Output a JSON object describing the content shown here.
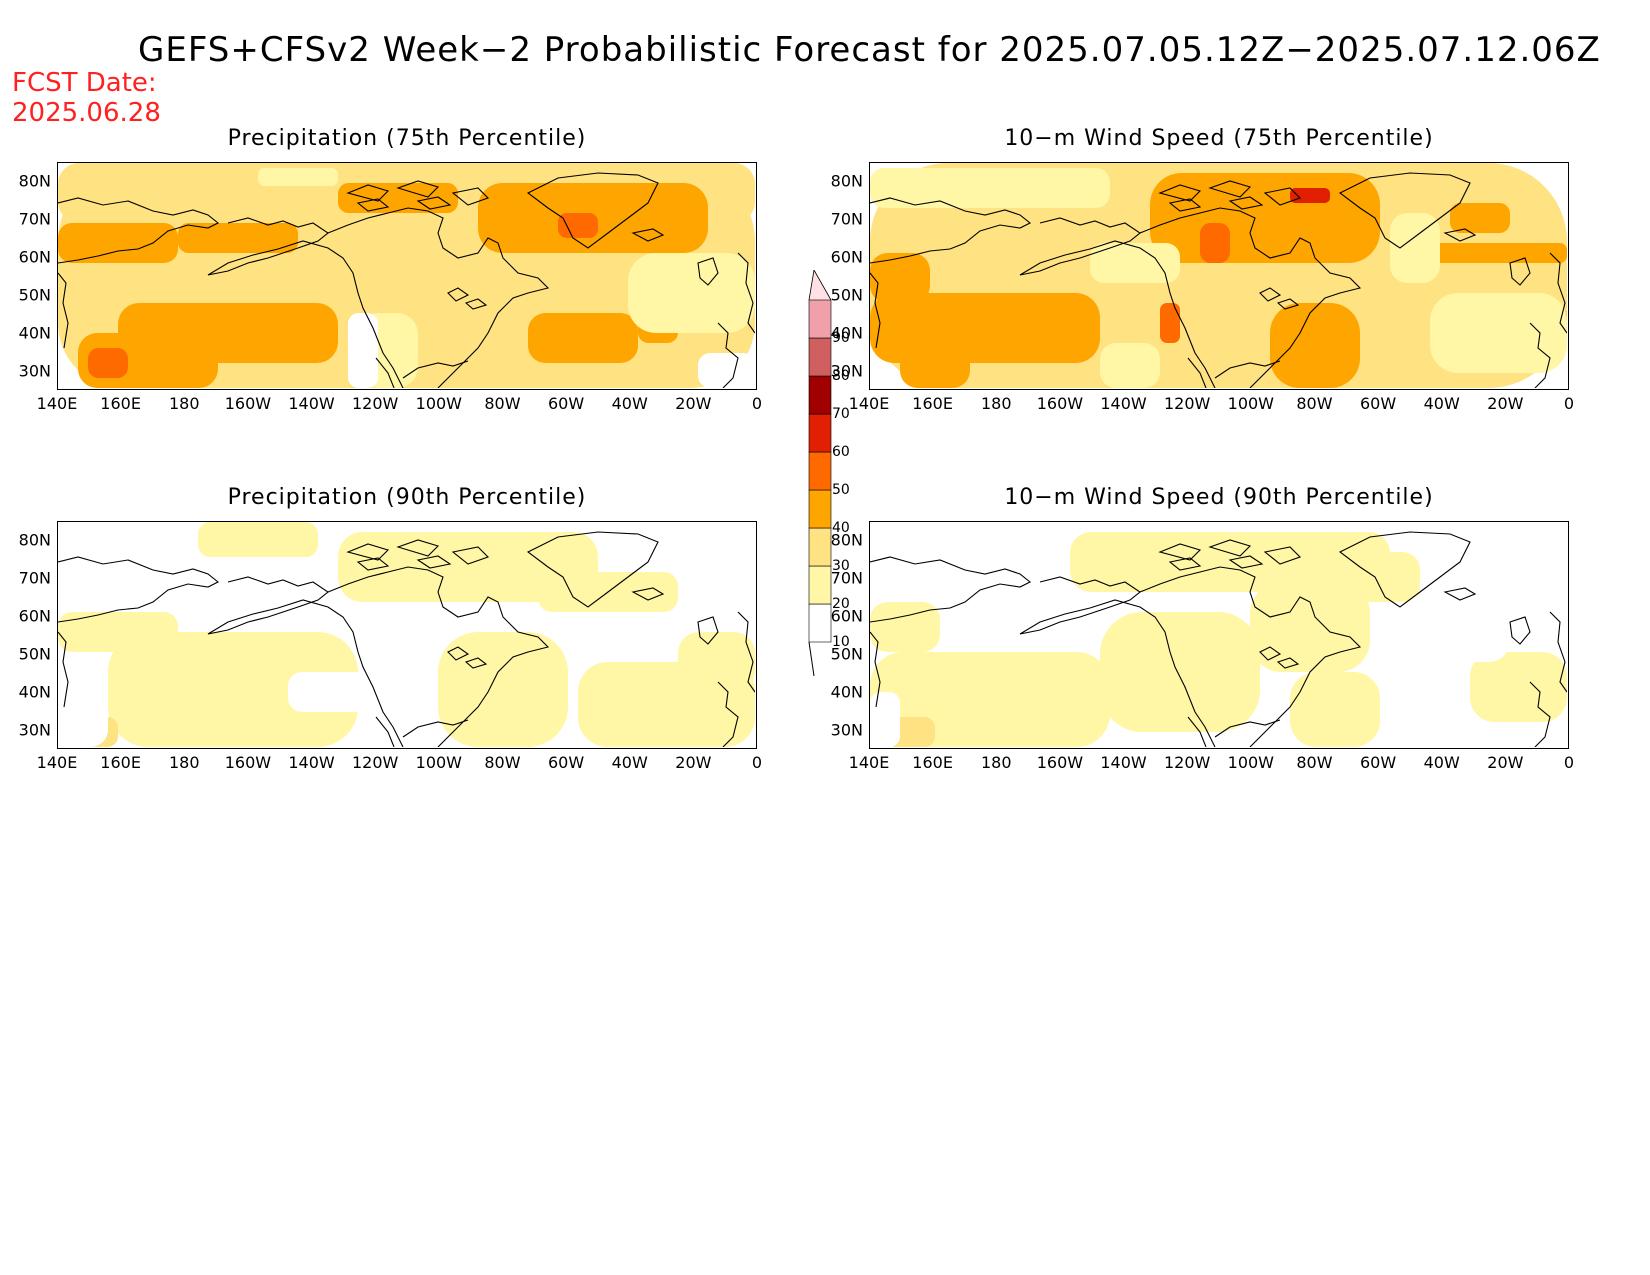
{
  "header": {
    "title": "GEFS+CFSv2 Week−2 Probabilistic Forecast for 2025.07.05.12Z−2025.07.12.06Z",
    "fcst_line1": "FCST Date:",
    "fcst_line2": "2025.06.28"
  },
  "axes": {
    "lat_labels": [
      "80N",
      "70N",
      "60N",
      "50N",
      "40N",
      "30N"
    ],
    "lon_labels": [
      "140E",
      "160E",
      "180",
      "160W",
      "140W",
      "120W",
      "100W",
      "80W",
      "60W",
      "40W",
      "20W",
      "0"
    ]
  },
  "panels": [
    {
      "title": "Precipitation (75th Percentile)",
      "field": "precip75"
    },
    {
      "title": "10−m Wind Speed (75th Percentile)",
      "field": "wind75"
    },
    {
      "title": "Precipitation (90th Percentile)",
      "field": "precip90"
    },
    {
      "title": "10−m Wind Speed (90th Percentile)",
      "field": "wind90"
    }
  ],
  "colorbar": {
    "levels": [
      "10",
      "20",
      "30",
      "40",
      "50",
      "60",
      "70",
      "80",
      "90"
    ],
    "colors": [
      "#fff6a6",
      "#ffe282",
      "#ffa500",
      "#ff6a00",
      "#e02000",
      "#a00000",
      "#d06060",
      "#f0a0a8",
      "#ffe0e4"
    ]
  }
}
